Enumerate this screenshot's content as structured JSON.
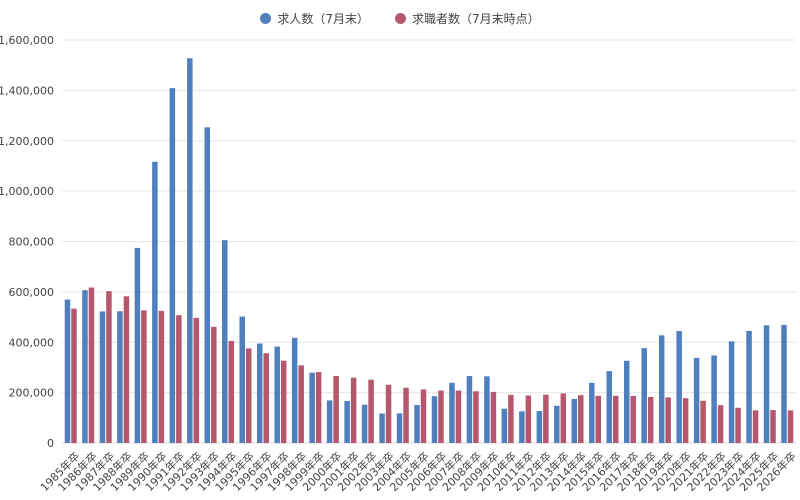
{
  "chart_data": {
    "type": "bar",
    "title": "",
    "xlabel": "",
    "ylabel": "",
    "ylim": [
      0,
      1600000
    ],
    "yticks": [
      0,
      200000,
      400000,
      600000,
      800000,
      1000000,
      1200000,
      1400000,
      1600000
    ],
    "ytick_labels": [
      "0",
      "200,000",
      "400,000",
      "600,000",
      "800,000",
      "1,000,000",
      "1,200,000",
      "1,400,000",
      "1,600,000"
    ],
    "grid": true,
    "legend_position": "top",
    "categories": [
      "1985年卒",
      "1986年卒",
      "1987年卒",
      "1988年卒",
      "1989年卒",
      "1990年卒",
      "1991年卒",
      "1992年卒",
      "1993年卒",
      "1994年卒",
      "1995年卒",
      "1996年卒",
      "1997年卒",
      "1998年卒",
      "1999年卒",
      "2000年卒",
      "2001年卒",
      "2002年卒",
      "2003年卒",
      "2004年卒",
      "2005年卒",
      "2006年卒",
      "2007年卒",
      "2008年卒",
      "2009年卒",
      "2010年卒",
      "2011年卒",
      "2012年卒",
      "2013年卒",
      "2014年卒",
      "2015年卒",
      "2016年卒",
      "2017年卒",
      "2018年卒",
      "2019年卒",
      "2020年卒",
      "2021年卒",
      "2022年卒",
      "2023年卒",
      "2024年卒",
      "2025年卒",
      "2026年卒"
    ],
    "series": [
      {
        "name": "求人数（7月末）",
        "color": "#4f7fbd",
        "values": [
          569500,
          606600,
          522500,
          523200,
          774500,
          1116800,
          1409200,
          1527500,
          1253300,
          805400,
          501800,
          394800,
          382800,
          417600,
          279000,
          169200,
          166600,
          152000,
          117200,
          117500,
          150800,
          185800,
          239100,
          265700,
          264900,
          136100,
          125800,
          126600,
          148000,
          174800,
          238700,
          285300,
          326400,
          376600,
          427300,
          444500,
          337800,
          347600,
          403600,
          444900,
          467400,
          468800
        ]
      },
      {
        "name": "求職者数（7月末時点）",
        "color": "#b5586e",
        "values": [
          533400,
          617200,
          602800,
          582500,
          526900,
          524600,
          507400,
          496800,
          461300,
          405300,
          375400,
          356300,
          326800,
          308400,
          281400,
          266100,
          259200,
          251500,
          231200,
          219500,
          212600,
          208300,
          208200,
          205100,
          203100,
          191200,
          188300,
          191700,
          196800,
          189900,
          187400,
          187500,
          186800,
          182900,
          181100,
          177800,
          167800,
          150400,
          139900,
          129500,
          130700,
          129600
        ]
      }
    ]
  },
  "legend": {
    "items": [
      {
        "label": "求人数（7月末）",
        "color": "#4f7fbd"
      },
      {
        "label": "求職者数（7月末時点）",
        "color": "#b5586e"
      }
    ]
  }
}
